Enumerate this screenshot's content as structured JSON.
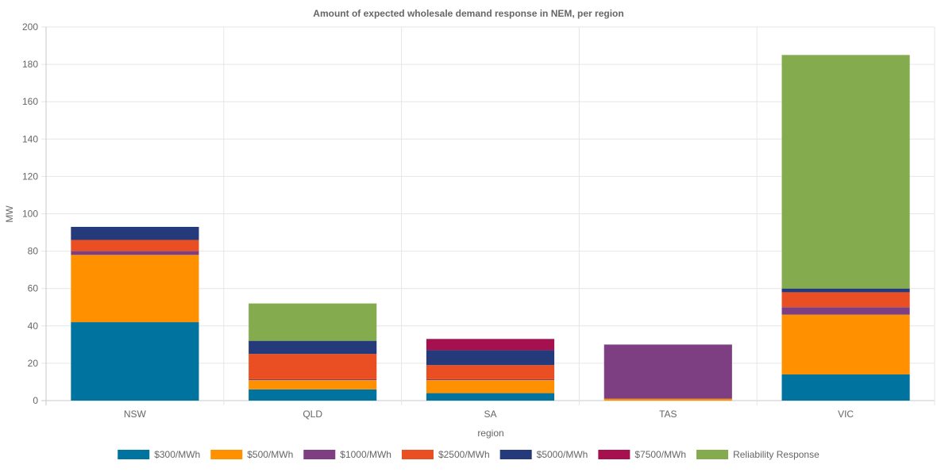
{
  "chart_data": {
    "type": "bar",
    "stacked": true,
    "title": "Amount of expected wholesale demand response in NEM, per region",
    "xlabel": "region",
    "ylabel": "MW",
    "ylim": [
      0,
      200
    ],
    "yticks": [
      0,
      20,
      40,
      60,
      80,
      100,
      120,
      140,
      160,
      180,
      200
    ],
    "grid": true,
    "legend_position": "bottom",
    "categories": [
      "NSW",
      "QLD",
      "SA",
      "TAS",
      "VIC"
    ],
    "series": [
      {
        "name": "$300/MWh",
        "color": "#00739e",
        "values": [
          42,
          6,
          4,
          0,
          14
        ]
      },
      {
        "name": "$500/MWh",
        "color": "#ff9101",
        "values": [
          36,
          5,
          7,
          1,
          32
        ]
      },
      {
        "name": "$1000/MWh",
        "color": "#7d3f82",
        "values": [
          2,
          0.5,
          0.5,
          29,
          4
        ]
      },
      {
        "name": "$2500/MWh",
        "color": "#e94f22",
        "values": [
          6,
          13.5,
          7.5,
          0,
          8
        ]
      },
      {
        "name": "$5000/MWh",
        "color": "#253a7b",
        "values": [
          7,
          7,
          8,
          0,
          2
        ]
      },
      {
        "name": "$7500/MWh",
        "color": "#a6104f",
        "values": [
          0,
          0,
          6,
          0,
          0
        ]
      },
      {
        "name": "Reliability Response",
        "color": "#84ab4e",
        "values": [
          0,
          20,
          0,
          0,
          125
        ]
      }
    ]
  }
}
